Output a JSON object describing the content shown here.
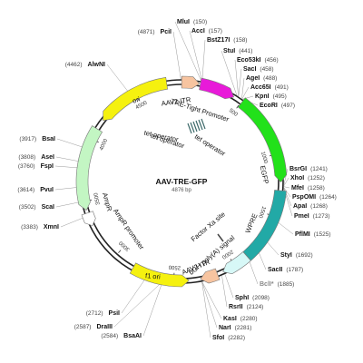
{
  "plasmid": {
    "name": "AAV-TRE-GFP",
    "length_label": "4876 bp",
    "length": 4876
  },
  "ticks": [
    {
      "bp": 500,
      "label": "500"
    },
    {
      "bp": 1000,
      "label": "1000"
    },
    {
      "bp": 1500,
      "label": "1500"
    },
    {
      "bp": 2000,
      "label": "2000"
    },
    {
      "bp": 2500,
      "label": "2500"
    },
    {
      "bp": 3000,
      "label": "3000"
    },
    {
      "bp": 3500,
      "label": "3500"
    },
    {
      "bp": 4000,
      "label": "4000"
    },
    {
      "bp": 4500,
      "label": "4500"
    }
  ],
  "features": [
    {
      "id": "aav2-itr-1",
      "label": "AAV2 ITR",
      "start": 1,
      "end": 141,
      "color": "#f7c4a0",
      "direction": "forward"
    },
    {
      "id": "tre-tight",
      "label": "TRE-Tight Promoter",
      "start": 148,
      "end": 430,
      "color": "#e81ad9",
      "direction": "forward"
    },
    {
      "id": "egfp",
      "label": "EGFP",
      "start": 505,
      "end": 1224,
      "color": "#22e11a",
      "direction": "forward"
    },
    {
      "id": "wpre",
      "label": "WPRE",
      "start": 1290,
      "end": 1879,
      "color": "#22a9a6",
      "direction": "none"
    },
    {
      "id": "bgh-polya",
      "label": "bGH poly(A) signal",
      "start": 1880,
      "end": 2104,
      "color": "#d7f8f7",
      "direction": "forward"
    },
    {
      "id": "aav2-itr-2",
      "label": "AAV2 ITR",
      "start": 2150,
      "end": 2290,
      "color": "#f7c4a0",
      "direction": "forward"
    },
    {
      "id": "f1-ori",
      "label": "f1 ori",
      "start": 2380,
      "end": 2835,
      "color": "#f5f10f",
      "direction": "reverse"
    },
    {
      "id": "ampr-promoter",
      "label": "AmpR promoter",
      "start": 3300,
      "end": 3406,
      "color": "#ffffff",
      "direction": "reverse"
    },
    {
      "id": "ampr",
      "label": "AmpR",
      "start": 3430,
      "end": 4090,
      "color": "#c3f6c3",
      "direction": "reverse"
    },
    {
      "id": "ori",
      "label": "ori",
      "start": 4170,
      "end": 4760,
      "color": "#f5f10f",
      "direction": "reverse"
    }
  ],
  "inner_labels": [
    {
      "id": "tet-operator-1",
      "label": "tet operator"
    },
    {
      "id": "tet-operator-2",
      "label": "tet operator"
    },
    {
      "id": "tet-operator-3",
      "label": "tet operator"
    },
    {
      "id": "factor-xa",
      "label": "Factor Xa site"
    }
  ],
  "sites_right": [
    {
      "name": "MluI",
      "pos": "(150)"
    },
    {
      "name": "AccI",
      "pos": "(157)"
    },
    {
      "name": "BstZ17I",
      "pos": "(158)"
    },
    {
      "name": "StuI",
      "pos": "(441)"
    },
    {
      "name": "Eco53kI",
      "pos": "(456)"
    },
    {
      "name": "SacI",
      "pos": "(458)"
    },
    {
      "name": "AgeI",
      "pos": "(488)"
    },
    {
      "name": "Acc65I",
      "pos": "(491)"
    },
    {
      "name": "KpnI",
      "pos": "(495)"
    },
    {
      "name": "EcoRI",
      "pos": "(497)"
    },
    {
      "name": "BsrGI",
      "pos": "(1241)"
    },
    {
      "name": "XhoI",
      "pos": "(1252)"
    },
    {
      "name": "MfeI",
      "pos": "(1258)"
    },
    {
      "name": "PspOMI",
      "pos": "(1264)"
    },
    {
      "name": "ApaI",
      "pos": "(1268)"
    },
    {
      "name": "PmeI",
      "pos": "(1273)"
    },
    {
      "name": "PflMI",
      "pos": "(1525)"
    },
    {
      "name": "StyI",
      "pos": "(1692)"
    },
    {
      "name": "SacII",
      "pos": "(1787)"
    },
    {
      "name": "BclI*",
      "pos": "(1885)"
    },
    {
      "name": "SphI",
      "pos": "(2098)"
    },
    {
      "name": "RsrII",
      "pos": "(2124)"
    },
    {
      "name": "KasI",
      "pos": "(2280)"
    },
    {
      "name": "NarI",
      "pos": "(2281)"
    },
    {
      "name": "SfoI",
      "pos": "(2282)"
    }
  ],
  "sites_left": [
    {
      "name": "PciI",
      "pos": "(4871)"
    },
    {
      "name": "AlwNI",
      "pos": "(4462)"
    },
    {
      "name": "BsaI",
      "pos": "(3917)"
    },
    {
      "name": "AseI",
      "pos": "(3808)"
    },
    {
      "name": "FspI",
      "pos": "(3760)"
    },
    {
      "name": "PvuI",
      "pos": "(3614)"
    },
    {
      "name": "ScaI",
      "pos": "(3502)"
    },
    {
      "name": "XmnI",
      "pos": "(3383)"
    },
    {
      "name": "PsiI",
      "pos": "(2712)"
    },
    {
      "name": "DraIII",
      "pos": "(2587)"
    },
    {
      "name": "BsaAI",
      "pos": "(2584)"
    }
  ]
}
